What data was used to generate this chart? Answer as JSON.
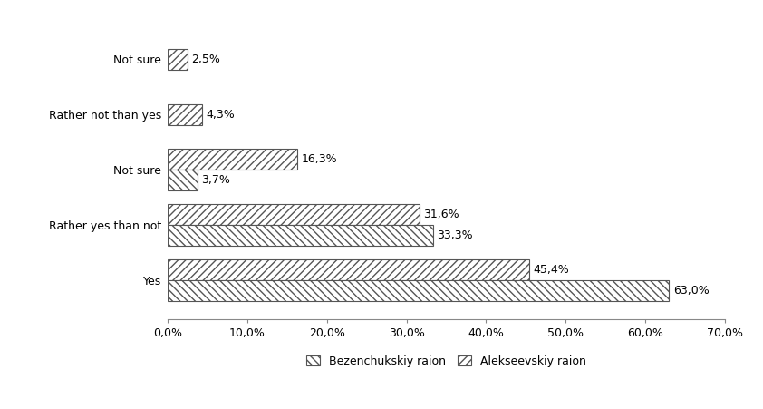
{
  "y_labels": [
    "Yes",
    "Rather yes than not",
    "Not sure",
    "Rather not than yes",
    "Not sure"
  ],
  "bezenchukskiy": [
    63.0,
    33.3,
    3.7,
    0.0,
    0.0
  ],
  "alekseevskiy": [
    45.4,
    31.6,
    16.3,
    4.3,
    2.5
  ],
  "bezenchukskiy_labels": [
    "63,0%",
    "33,3%",
    "3,7%",
    "",
    ""
  ],
  "alekseevskiy_labels": [
    "45,4%",
    "31,6%",
    "16,3%",
    "4,3%",
    "2,5%"
  ],
  "legend_bezenchukskiy": "Bezenchukskiy raion",
  "legend_alekseevskiy": "Alekseevskiy raion",
  "xlim": [
    0,
    70
  ],
  "xticks": [
    0,
    10,
    20,
    30,
    40,
    50,
    60,
    70
  ],
  "xtick_labels": [
    "0,0%",
    "10,0%",
    "20,0%",
    "30,0%",
    "40,0%",
    "50,0%",
    "60,0%",
    "70,0%"
  ],
  "bar_height": 0.38,
  "background_color": "#ffffff",
  "border_color": "#555555",
  "hatch_bezenchukskiy": "\\\\\\\\",
  "hatch_alekseevskiy": "////",
  "facecolor_bezenchukskiy": "#ffffff",
  "facecolor_alekseevskiy": "#ffffff"
}
